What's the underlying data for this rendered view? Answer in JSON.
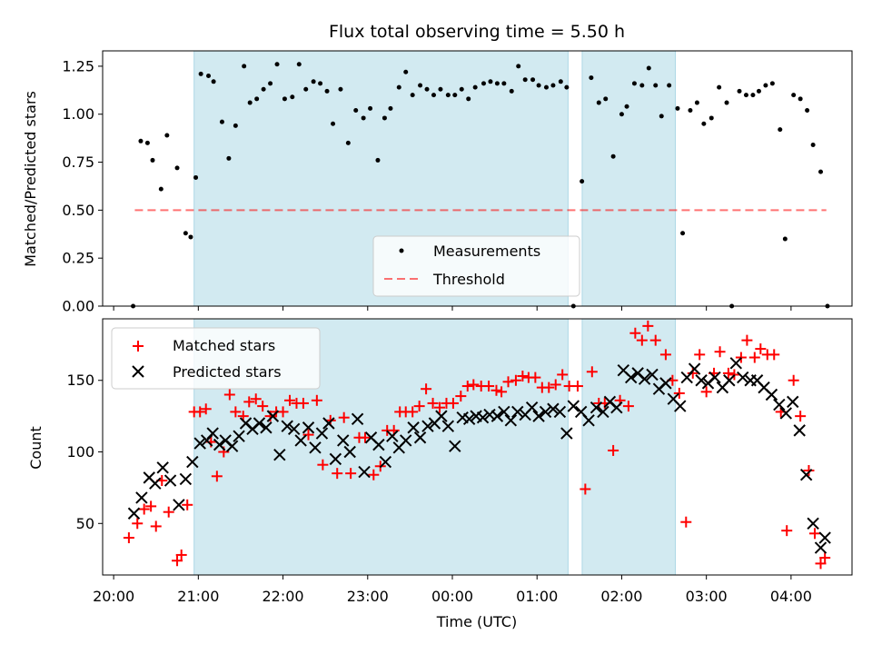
{
  "title": "Flux total observing time = 5.50 h",
  "colors": {
    "shade": "#add8e6",
    "measure": "#000000",
    "threshold": "#ff0000",
    "matched": "#ff0000",
    "predicted": "#000000"
  },
  "chart_data": [
    {
      "type": "scatter",
      "ylabel": "Matched/Predicted stars",
      "xlim": [
        "20:00",
        "04:40"
      ],
      "xlim_hours": [
        19.87,
        28.72
      ],
      "ylim": [
        0,
        1.33
      ],
      "yticks": [
        "0.00",
        "0.25",
        "0.50",
        "0.75",
        "1.00",
        "1.25"
      ],
      "shaded_intervals": [
        [
          "20:57",
          "01:22"
        ],
        [
          "01:32",
          "02:38"
        ]
      ],
      "threshold": {
        "name": "Threshold",
        "value": 0.5,
        "x_range": [
          "20:15",
          "04:25"
        ]
      },
      "legend": {
        "position": "lower center",
        "entries": [
          "Measurements",
          "Threshold"
        ]
      },
      "series": [
        {
          "name": "Measurements",
          "x": [
            20.23,
            20.32,
            20.4,
            20.46,
            20.56,
            20.63,
            20.75,
            20.85,
            20.91,
            20.97,
            21.03,
            21.12,
            21.18,
            21.28,
            21.36,
            21.44,
            21.54,
            21.61,
            21.69,
            21.77,
            21.85,
            21.93,
            22.02,
            22.11,
            22.19,
            22.27,
            22.36,
            22.44,
            22.52,
            22.59,
            22.68,
            22.77,
            22.86,
            22.95,
            23.03,
            23.12,
            23.2,
            23.27,
            23.37,
            23.45,
            23.53,
            23.62,
            23.7,
            23.78,
            23.86,
            23.95,
            24.03,
            24.11,
            24.19,
            24.27,
            24.37,
            24.45,
            24.53,
            24.61,
            24.7,
            24.78,
            24.86,
            24.95,
            25.02,
            25.11,
            25.19,
            25.28,
            25.35,
            25.43,
            25.53,
            25.64,
            25.73,
            25.81,
            25.9,
            26.0,
            26.06,
            26.15,
            26.24,
            26.32,
            26.4,
            26.47,
            26.56,
            26.66,
            26.72,
            26.81,
            26.89,
            26.97,
            27.06,
            27.15,
            27.24,
            27.3,
            27.39,
            27.47,
            27.55,
            27.62,
            27.7,
            27.78,
            27.87,
            27.93,
            28.03,
            28.11,
            28.19,
            28.26,
            28.35,
            28.43
          ],
          "y": [
            0.0,
            0.86,
            0.85,
            0.76,
            0.61,
            0.89,
            0.72,
            0.38,
            0.36,
            0.67,
            1.21,
            1.2,
            1.17,
            0.96,
            0.77,
            0.94,
            1.25,
            1.06,
            1.08,
            1.13,
            1.16,
            1.26,
            1.08,
            1.09,
            1.26,
            1.13,
            1.17,
            1.16,
            1.12,
            0.95,
            1.13,
            0.85,
            1.02,
            0.98,
            1.03,
            0.76,
            0.98,
            1.03,
            1.14,
            1.22,
            1.1,
            1.15,
            1.13,
            1.1,
            1.13,
            1.1,
            1.1,
            1.13,
            1.08,
            1.14,
            1.16,
            1.17,
            1.16,
            1.16,
            1.12,
            1.25,
            1.18,
            1.18,
            1.15,
            1.14,
            1.15,
            1.17,
            1.14,
            0.0,
            0.65,
            1.19,
            1.06,
            1.08,
            0.78,
            1.0,
            1.04,
            1.16,
            1.15,
            1.24,
            1.15,
            0.99,
            1.15,
            1.03,
            0.38,
            1.02,
            1.06,
            0.95,
            0.98,
            1.14,
            1.06,
            0.0,
            1.12,
            1.1,
            1.1,
            1.12,
            1.15,
            1.16,
            0.92,
            0.35,
            1.1,
            1.08,
            1.02,
            0.84,
            0.7,
            0.0
          ]
        }
      ]
    },
    {
      "type": "scatter",
      "xlabel": "Time (UTC)",
      "ylabel": "Count",
      "xlim": [
        "20:00",
        "04:40"
      ],
      "xlim_hours": [
        19.87,
        28.72
      ],
      "ylim": [
        14,
        193
      ],
      "xticks": [
        "20:00",
        "21:00",
        "22:00",
        "23:00",
        "00:00",
        "01:00",
        "02:00",
        "03:00",
        "04:00"
      ],
      "yticks": [
        "50",
        "100",
        "150"
      ],
      "shaded_intervals": [
        [
          "20:57",
          "01:22"
        ],
        [
          "01:32",
          "02:38"
        ]
      ],
      "legend": {
        "position": "upper left",
        "entries": [
          "Matched stars",
          "Predicted stars"
        ]
      },
      "series": [
        {
          "name": "Matched stars",
          "x": [
            20.18,
            20.28,
            20.36,
            20.44,
            20.5,
            20.57,
            20.65,
            20.75,
            20.8,
            20.87,
            20.95,
            21.02,
            21.09,
            21.15,
            21.22,
            21.3,
            21.37,
            21.44,
            21.53,
            21.6,
            21.68,
            21.76,
            21.85,
            21.92,
            22.0,
            22.08,
            22.16,
            22.24,
            22.3,
            22.4,
            22.47,
            22.56,
            22.64,
            22.72,
            22.8,
            22.9,
            22.97,
            23.07,
            23.15,
            23.23,
            23.31,
            23.38,
            23.45,
            23.53,
            23.61,
            23.69,
            23.77,
            23.85,
            23.93,
            24.01,
            24.1,
            24.18,
            24.25,
            24.34,
            24.43,
            24.52,
            24.58,
            24.66,
            24.75,
            24.83,
            24.9,
            24.98,
            25.06,
            25.14,
            25.22,
            25.3,
            25.38,
            25.48,
            25.57,
            25.65,
            25.73,
            25.8,
            25.9,
            25.98,
            26.08,
            26.16,
            26.24,
            26.31,
            26.4,
            26.52,
            26.6,
            26.68,
            26.76,
            26.84,
            26.92,
            27.0,
            27.09,
            27.16,
            27.26,
            27.33,
            27.41,
            27.48,
            27.57,
            27.64,
            27.72,
            27.8,
            27.88,
            27.95,
            28.03,
            28.11,
            28.21,
            28.28,
            28.35,
            28.4
          ],
          "y": [
            40,
            50,
            60,
            62,
            48,
            80,
            58,
            24,
            28,
            63,
            128,
            128,
            130,
            107,
            83,
            100,
            140,
            128,
            125,
            135,
            137,
            132,
            125,
            128,
            128,
            136,
            134,
            134,
            112,
            136,
            91,
            122,
            85,
            124,
            85,
            110,
            110,
            84,
            90,
            115,
            115,
            128,
            128,
            128,
            132,
            144,
            134,
            131,
            134,
            134,
            139,
            146,
            147,
            146,
            146,
            143,
            142,
            149,
            150,
            153,
            152,
            152,
            145,
            145,
            147,
            154,
            146,
            146,
            74,
            156,
            134,
            134,
            101,
            136,
            132,
            183,
            178,
            188,
            178,
            168,
            150,
            141,
            51,
            155,
            168,
            142,
            155,
            170,
            155,
            154,
            166,
            178,
            166,
            172,
            168,
            168,
            128,
            45,
            150,
            125,
            87,
            43,
            22,
            26
          ]
        },
        {
          "name": "Predicted stars",
          "x": [
            20.24,
            20.33,
            20.42,
            20.49,
            20.58,
            20.67,
            20.77,
            20.85,
            20.93,
            21.02,
            21.1,
            21.17,
            21.25,
            21.32,
            21.4,
            21.48,
            21.56,
            21.64,
            21.72,
            21.8,
            21.88,
            21.96,
            22.05,
            22.13,
            22.21,
            22.3,
            22.38,
            22.46,
            22.54,
            22.62,
            22.71,
            22.79,
            22.88,
            22.96,
            23.04,
            23.13,
            23.21,
            23.29,
            23.37,
            23.45,
            23.54,
            23.62,
            23.71,
            23.79,
            23.87,
            23.95,
            24.03,
            24.12,
            24.2,
            24.28,
            24.36,
            24.44,
            24.53,
            24.61,
            24.69,
            24.77,
            24.86,
            24.94,
            25.02,
            25.1,
            25.19,
            25.27,
            25.35,
            25.43,
            25.52,
            25.61,
            25.7,
            25.78,
            25.86,
            25.94,
            26.02,
            26.11,
            26.19,
            26.27,
            26.36,
            26.44,
            26.52,
            26.61,
            26.69,
            26.77,
            26.86,
            26.94,
            27.02,
            27.1,
            27.19,
            27.27,
            27.35,
            27.43,
            27.52,
            27.6,
            27.68,
            27.77,
            27.86,
            27.94,
            28.02,
            28.1,
            28.18,
            28.26,
            28.35,
            28.4
          ],
          "y": [
            57,
            68,
            82,
            78,
            89,
            80,
            63,
            81,
            93,
            106,
            108,
            113,
            105,
            108,
            104,
            111,
            120,
            116,
            120,
            117,
            125,
            98,
            118,
            116,
            108,
            117,
            103,
            113,
            120,
            95,
            108,
            100,
            123,
            86,
            110,
            105,
            93,
            111,
            103,
            108,
            117,
            110,
            118,
            120,
            125,
            118,
            104,
            124,
            123,
            125,
            124,
            126,
            125,
            128,
            122,
            128,
            126,
            131,
            125,
            128,
            130,
            128,
            113,
            132,
            128,
            122,
            131,
            128,
            135,
            131,
            157,
            152,
            155,
            151,
            154,
            144,
            148,
            137,
            132,
            152,
            158,
            150,
            148,
            152,
            145,
            150,
            162,
            152,
            150,
            150,
            145,
            140,
            133,
            127,
            135,
            115,
            84,
            50,
            33,
            40
          ]
        }
      ]
    }
  ]
}
